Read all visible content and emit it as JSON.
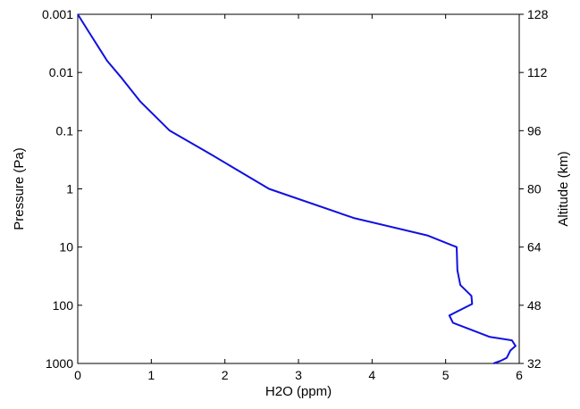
{
  "chart_data": {
    "type": "line",
    "title": "",
    "xlabel": "H2O (ppm)",
    "ylabel": "Pressure (Pa)",
    "y2label": "Altitude (km)",
    "xlim": [
      0,
      6
    ],
    "ylim": [
      1000,
      0.001
    ],
    "y_scale": "log",
    "y_direction": "reversed",
    "y2lim": [
      32,
      128
    ],
    "grid": false,
    "x_ticks": [
      "0",
      "1",
      "2",
      "3",
      "4",
      "5",
      "6"
    ],
    "y_ticks": [
      "0.001",
      "0.01",
      "0.1",
      "1",
      "10",
      "100",
      "1000"
    ],
    "y2_ticks": [
      "128",
      "112",
      "96",
      "80",
      "64",
      "48",
      "32"
    ],
    "series": [
      {
        "color": "#1010e0",
        "x": [
          0.0,
          0.15,
          0.3,
          0.4,
          0.6,
          0.85,
          1.25,
          1.8,
          2.6,
          3.75,
          4.75,
          5.15,
          5.16,
          5.2,
          5.35,
          5.36,
          5.05,
          5.1,
          5.3,
          5.6,
          5.9,
          5.95,
          5.88,
          5.83,
          5.75,
          5.65
        ],
        "y": [
          0.001,
          0.002,
          0.004,
          0.0063,
          0.0126,
          0.0316,
          0.1,
          0.251,
          1.0,
          3.16,
          6.3,
          10.0,
          25.0,
          45.0,
          69.0,
          95.0,
          150.0,
          200.0,
          250.0,
          350.0,
          400.0,
          500.0,
          600.0,
          800.0,
          900.0,
          1000.0
        ]
      }
    ]
  }
}
